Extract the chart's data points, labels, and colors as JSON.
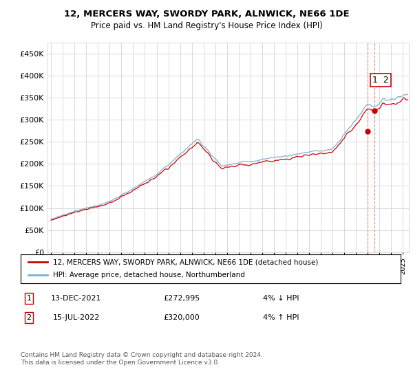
{
  "title": "12, MERCERS WAY, SWORDY PARK, ALNWICK, NE66 1DE",
  "subtitle": "Price paid vs. HM Land Registry's House Price Index (HPI)",
  "ylim": [
    0,
    475000
  ],
  "yticks": [
    0,
    50000,
    100000,
    150000,
    200000,
    250000,
    300000,
    350000,
    400000,
    450000
  ],
  "hpi_color": "#7bafd4",
  "price_color": "#cc0000",
  "dashed_line_color": "#e88080",
  "transaction1_x": 2021.958,
  "transaction1_price": 272995,
  "transaction2_x": 2022.542,
  "transaction2_price": 320000,
  "transaction1_date": "13-DEC-2021",
  "transaction1_hpi": "4% ↓ HPI",
  "transaction2_date": "15-JUL-2022",
  "transaction2_price_str": "£320,000",
  "transaction1_price_str": "£272,995",
  "transaction2_hpi": "4% ↑ HPI",
  "label_1": "12, MERCERS WAY, SWORDY PARK, ALNWICK, NE66 1DE (detached house)",
  "label_2": "HPI: Average price, detached house, Northumberland",
  "footer": "Contains HM Land Registry data © Crown copyright and database right 2024.\nThis data is licensed under the Open Government Licence v3.0.",
  "background_color": "#ffffff",
  "grid_color": "#cccccc",
  "xlim_left": 1994.7,
  "xlim_right": 2025.5
}
